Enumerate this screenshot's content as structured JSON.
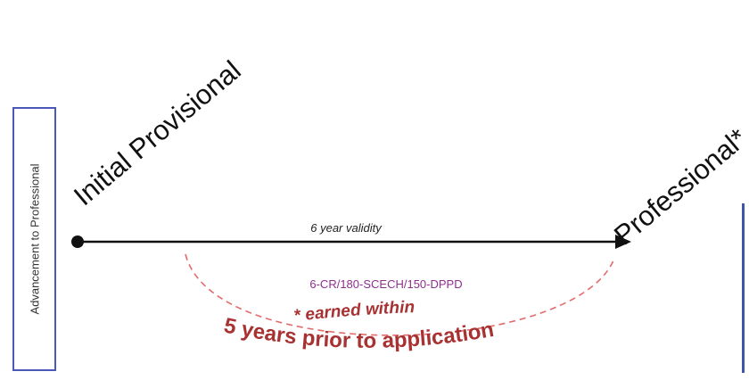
{
  "side_box": {
    "label": "Advancement to Professional"
  },
  "start": {
    "label": "Initial Provisional"
  },
  "end": {
    "label": "Professional*"
  },
  "timeline": {
    "validity": "6 year validity"
  },
  "requirement": {
    "label": "6-CR/180-SCECH/150-DPPD"
  },
  "arc": {
    "line1": "* earned within",
    "line2": "5 years prior to application"
  },
  "colors": {
    "box_border": "#4a58b8",
    "arrow": "#111111",
    "requirement": "#8e2f8e",
    "arc": "#a83232",
    "dashed": "#e26a6a"
  }
}
